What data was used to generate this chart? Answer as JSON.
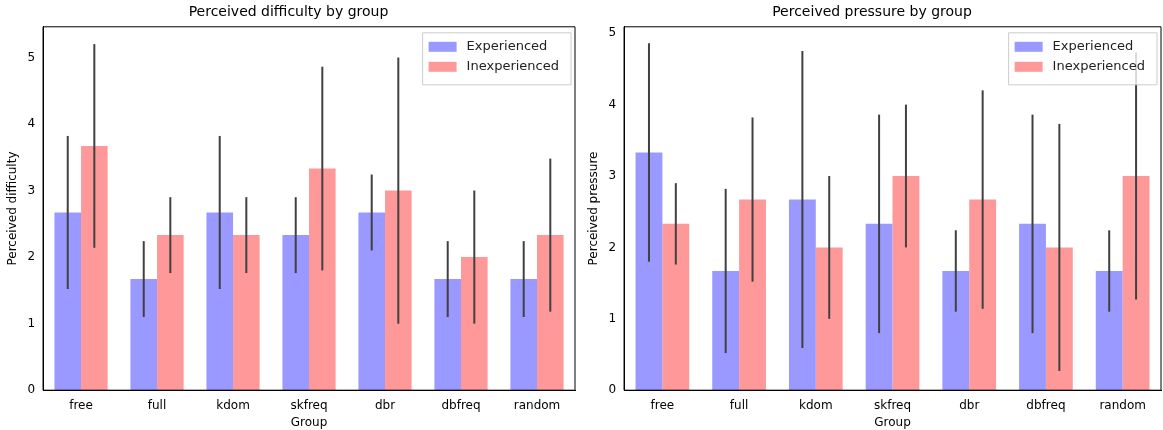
{
  "chart_data": [
    {
      "type": "bar",
      "title": "Perceived difficulty by group",
      "xlabel": "Group",
      "ylabel": "Perceived difficulty",
      "categories": [
        "free",
        "full",
        "kdom",
        "skfreq",
        "dbr",
        "dbfreq",
        "random"
      ],
      "series": [
        {
          "name": "Experienced",
          "color": "#9999ff",
          "values": [
            2.67,
            1.67,
            2.67,
            2.33,
            2.67,
            1.67,
            1.67
          ],
          "errors": [
            1.15,
            0.57,
            1.15,
            0.57,
            0.57,
            0.57,
            0.57
          ]
        },
        {
          "name": "Inexperienced",
          "color": "#ff9999",
          "values": [
            3.67,
            2.33,
            2.33,
            3.33,
            3.0,
            2.0,
            2.33
          ],
          "errors": [
            1.53,
            0.57,
            0.57,
            1.53,
            2.0,
            1.0,
            1.15
          ]
        }
      ],
      "ylim": [
        0,
        5.46
      ],
      "yticks": [
        0,
        1,
        2,
        3,
        4,
        5
      ],
      "grid": false,
      "legend": "top right"
    },
    {
      "type": "bar",
      "title": "Perceived pressure by group",
      "xlabel": "Group",
      "ylabel": "Perceived pressure",
      "categories": [
        "free",
        "full",
        "kdom",
        "skfreq",
        "dbr",
        "dbfreq",
        "random"
      ],
      "series": [
        {
          "name": "Experienced",
          "color": "#9999ff",
          "values": [
            3.33,
            1.67,
            2.67,
            2.33,
            1.67,
            2.33,
            1.67
          ],
          "errors": [
            1.53,
            1.15,
            2.08,
            1.53,
            0.57,
            1.53,
            0.57
          ]
        },
        {
          "name": "Inexperienced",
          "color": "#ff9999",
          "values": [
            2.33,
            2.67,
            2.0,
            3.0,
            2.67,
            2.0,
            3.0
          ],
          "errors": [
            0.57,
            1.15,
            1.0,
            1.0,
            1.53,
            1.73,
            1.73
          ]
        }
      ],
      "ylim": [
        0,
        5.09
      ],
      "yticks": [
        0,
        1,
        2,
        3,
        4,
        5
      ],
      "grid": false,
      "legend": "top right"
    }
  ]
}
